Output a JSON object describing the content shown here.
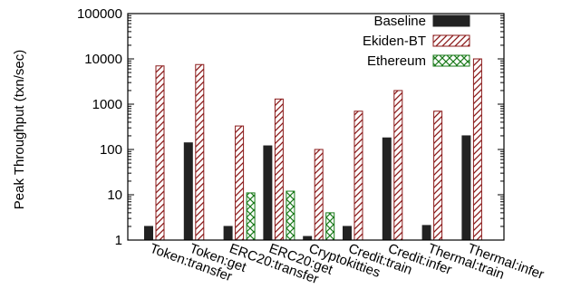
{
  "chart_data": {
    "type": "bar",
    "yscale": "log",
    "ylim": [
      1,
      100000
    ],
    "ylabel": "Peak Throughput (txn/sec)",
    "xlabel": "",
    "yticks": [
      "1",
      "10",
      "100",
      "1000",
      "10000",
      "100000"
    ],
    "categories": [
      "Token:transfer",
      "Token:get",
      "ERC20:transfer",
      "ERC20:get",
      "Cryptokitties",
      "Credit:train",
      "Credit:infer",
      "Thermal:train",
      "Thermal:infer"
    ],
    "series": [
      {
        "name": "Baseline",
        "color": "#222222",
        "fill": "solid",
        "values": [
          2,
          140,
          2,
          120,
          1.2,
          2,
          180,
          2.1,
          200
        ]
      },
      {
        "name": "Ekiden-BT",
        "color": "#8b1a1a",
        "fill": "diagonal-hatch",
        "values": [
          7000,
          7500,
          330,
          1300,
          100,
          700,
          2000,
          700,
          10000
        ]
      },
      {
        "name": "Ethereum",
        "color": "#1a7a1a",
        "fill": "cross-hatch",
        "values": [
          null,
          null,
          11,
          12,
          4,
          null,
          null,
          null,
          null
        ]
      }
    ],
    "legend_position": "top-right",
    "grid": false
  }
}
